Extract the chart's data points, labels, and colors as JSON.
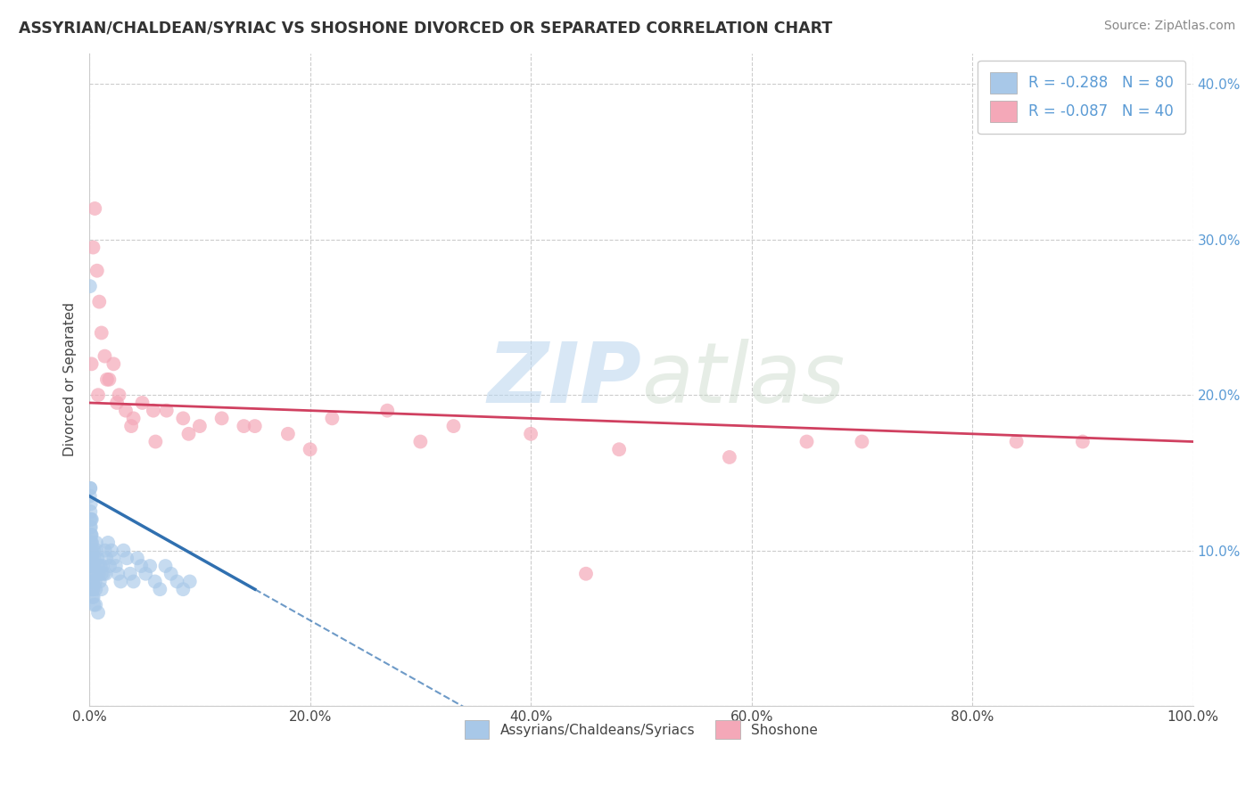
{
  "title": "ASSYRIAN/CHALDEAN/SYRIAC VS SHOSHONE DIVORCED OR SEPARATED CORRELATION CHART",
  "source": "Source: ZipAtlas.com",
  "ylabel": "Divorced or Separated",
  "xlim": [
    0,
    100
  ],
  "ylim": [
    0,
    42
  ],
  "yticks": [
    0,
    10,
    20,
    30,
    40
  ],
  "ytick_labels": [
    "",
    "10.0%",
    "20.0%",
    "30.0%",
    "40.0%"
  ],
  "xticks": [
    0,
    20,
    40,
    60,
    80,
    100
  ],
  "xtick_labels": [
    "0.0%",
    "20.0%",
    "40.0%",
    "60.0%",
    "80.0%",
    "100.0%"
  ],
  "legend_labels": [
    "Assyrians/Chaldeans/Syriacs",
    "Shoshone"
  ],
  "blue_R": -0.288,
  "blue_N": 80,
  "pink_R": -0.087,
  "pink_N": 40,
  "blue_color": "#a8c8e8",
  "pink_color": "#f4a8b8",
  "blue_line_color": "#3070b0",
  "pink_line_color": "#d04060",
  "watermark_zip": "ZIP",
  "watermark_atlas": "atlas",
  "background_color": "#ffffff",
  "grid_color": "#cccccc",
  "blue_scatter_x": [
    0.05,
    0.07,
    0.08,
    0.09,
    0.1,
    0.11,
    0.12,
    0.13,
    0.14,
    0.15,
    0.16,
    0.17,
    0.18,
    0.19,
    0.2,
    0.21,
    0.22,
    0.23,
    0.24,
    0.25,
    0.26,
    0.27,
    0.28,
    0.29,
    0.3,
    0.31,
    0.32,
    0.33,
    0.35,
    0.37,
    0.4,
    0.43,
    0.46,
    0.5,
    0.54,
    0.58,
    0.63,
    0.68,
    0.74,
    0.8,
    0.87,
    0.94,
    1.02,
    1.1,
    1.2,
    1.3,
    1.42,
    1.55,
    1.7,
    1.85,
    2.0,
    2.2,
    2.4,
    2.6,
    2.85,
    3.1,
    3.4,
    3.7,
    4.0,
    4.35,
    4.7,
    5.1,
    5.5,
    5.95,
    6.4,
    6.9,
    7.4,
    7.95,
    8.5,
    9.1,
    0.06,
    0.09,
    0.15,
    0.22,
    0.3,
    0.42,
    0.58,
    0.8,
    1.1,
    1.5
  ],
  "blue_scatter_y": [
    13.5,
    12.0,
    11.5,
    14.0,
    12.5,
    11.0,
    10.5,
    13.0,
    11.5,
    10.0,
    12.0,
    11.0,
    10.5,
    9.5,
    11.0,
    10.0,
    9.5,
    9.0,
    10.5,
    9.0,
    8.5,
    8.0,
    9.5,
    8.5,
    8.0,
    7.5,
    9.0,
    8.0,
    7.5,
    7.0,
    10.0,
    9.5,
    9.0,
    8.5,
    8.0,
    7.5,
    10.5,
    10.0,
    9.5,
    9.0,
    8.5,
    8.0,
    9.0,
    8.5,
    9.0,
    8.5,
    10.0,
    9.5,
    10.5,
    9.0,
    10.0,
    9.5,
    9.0,
    8.5,
    8.0,
    10.0,
    9.5,
    8.5,
    8.0,
    9.5,
    9.0,
    8.5,
    9.0,
    8.0,
    7.5,
    9.0,
    8.5,
    8.0,
    7.5,
    8.0,
    27.0,
    14.0,
    7.5,
    12.0,
    7.0,
    6.5,
    6.5,
    6.0,
    7.5,
    8.5
  ],
  "pink_scatter_x": [
    0.2,
    0.35,
    0.5,
    0.7,
    0.9,
    1.1,
    1.4,
    1.8,
    2.2,
    2.7,
    3.3,
    4.0,
    4.8,
    5.8,
    7.0,
    8.5,
    10.0,
    12.0,
    15.0,
    18.0,
    22.0,
    27.0,
    33.0,
    40.0,
    48.0,
    58.0,
    70.0,
    84.0,
    0.8,
    1.6,
    2.5,
    3.8,
    6.0,
    9.0,
    14.0,
    20.0,
    30.0,
    45.0,
    65.0,
    90.0
  ],
  "pink_scatter_y": [
    22.0,
    29.5,
    32.0,
    28.0,
    26.0,
    24.0,
    22.5,
    21.0,
    22.0,
    20.0,
    19.0,
    18.5,
    19.5,
    19.0,
    19.0,
    18.5,
    18.0,
    18.5,
    18.0,
    17.5,
    18.5,
    19.0,
    18.0,
    17.5,
    16.5,
    16.0,
    17.0,
    17.0,
    20.0,
    21.0,
    19.5,
    18.0,
    17.0,
    17.5,
    18.0,
    16.5,
    17.0,
    8.5,
    17.0,
    17.0
  ],
  "blue_trend_x0": 0,
  "blue_trend_y0": 13.5,
  "blue_trend_x1": 15,
  "blue_trend_y1": 7.5,
  "blue_solid_end": 15,
  "pink_trend_x0": 0,
  "pink_trend_y0": 19.5,
  "pink_trend_x1": 100,
  "pink_trend_y1": 17.0
}
